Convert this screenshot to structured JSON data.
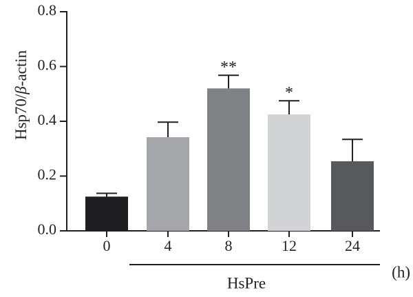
{
  "chart_data": {
    "type": "bar",
    "ylabel": "Hsp70/β-actin",
    "ylabel_parts": [
      "Hsp70/",
      "β",
      "-actin"
    ],
    "ylim": [
      0.0,
      0.8
    ],
    "yticks": [
      "0.0",
      "0.2",
      "0.4",
      "0.6",
      "0.8"
    ],
    "categories": [
      "0",
      "4",
      "8",
      "12",
      "24"
    ],
    "values": [
      0.125,
      0.342,
      0.52,
      0.425,
      0.254
    ],
    "errors": [
      0.012,
      0.055,
      0.048,
      0.05,
      0.08
    ],
    "significance": [
      "",
      "",
      "**",
      "*",
      ""
    ],
    "colors": [
      "#1f1f21",
      "#a6a7ab",
      "#808184",
      "#d2d3d5",
      "#58595b"
    ],
    "group_label": "HsPre",
    "group_categories": [
      "4",
      "8",
      "12",
      "24"
    ],
    "unit_label": "(h)",
    "grid": false
  }
}
